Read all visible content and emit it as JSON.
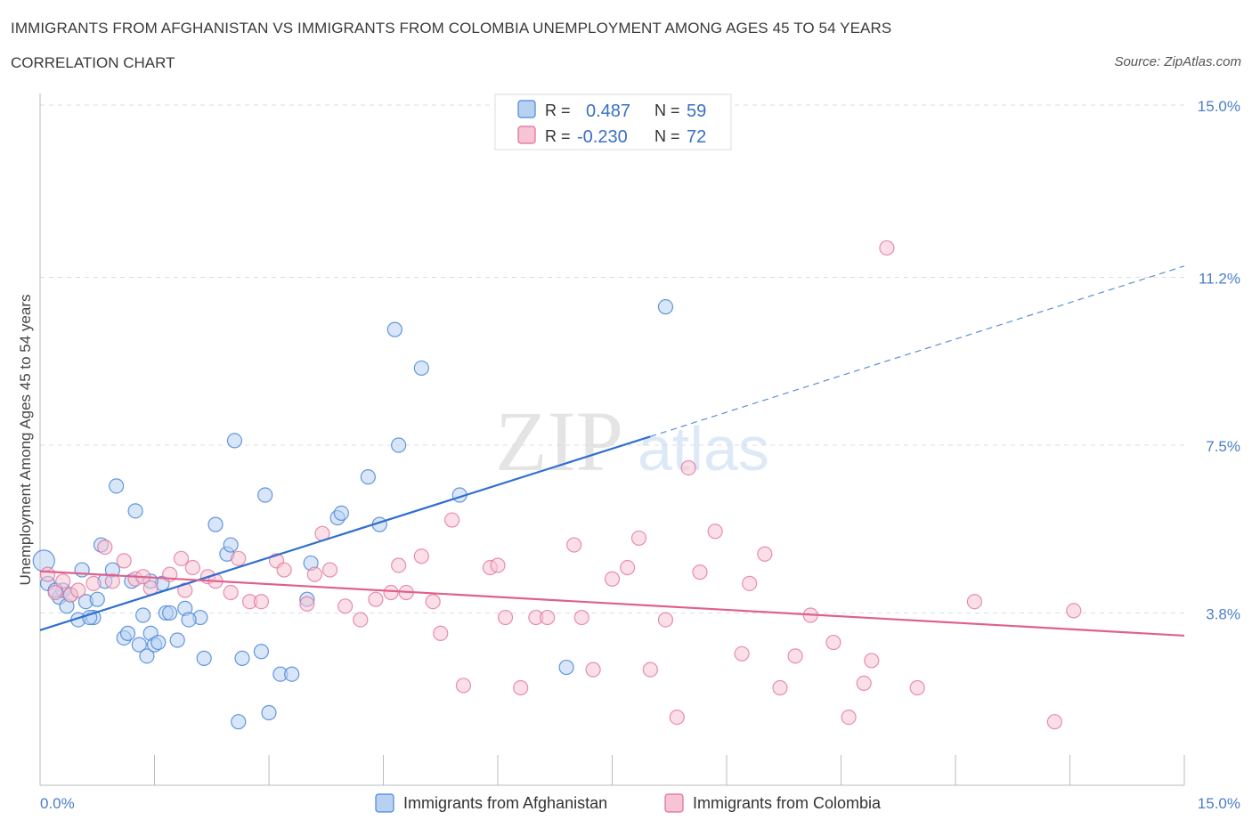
{
  "header": {
    "title": "IMMIGRANTS FROM AFGHANISTAN VS IMMIGRANTS FROM COLOMBIA UNEMPLOYMENT AMONG AGES 45 TO 54 YEARS",
    "subtitle": "CORRELATION CHART",
    "source": "Source: ZipAtlas.com"
  },
  "watermark": {
    "part1": "ZIP",
    "part2": "atlas"
  },
  "colors": {
    "afghanistan": "#4a86d8",
    "afghanistan_fill": "#b8d1f3",
    "colombia": "#e06c96",
    "colombia_fill": "#f6c4d4",
    "tick_label": "#4a7ec8",
    "grid": "#dddddd"
  },
  "legend_top": {
    "rows": [
      {
        "r_label": "R =",
        "r_value": "0.487",
        "n_label": "N =",
        "n_value": "59"
      },
      {
        "r_label": "R =",
        "r_value": "-0.230",
        "n_label": "N =",
        "n_value": "72"
      }
    ]
  },
  "chart_data": {
    "type": "scatter",
    "xlabel": "",
    "ylabel": "Unemployment Among Ages 45 to 54 years",
    "xlim": [
      0,
      15
    ],
    "ylim": [
      0,
      15
    ],
    "x_tick_labels": [
      "0.0%",
      "15.0%"
    ],
    "y_tick_labels": [
      "3.8%",
      "7.5%",
      "11.2%",
      "15.0%"
    ],
    "y_ticks": [
      3.8,
      7.5,
      11.2,
      15.0
    ],
    "grid": true,
    "legend": "top-center",
    "series": [
      {
        "name": "Immigrants from Afghanistan",
        "r": 0.487,
        "n": 59,
        "trend": {
          "x0": 0,
          "y0": 3.42,
          "x1": 8.0,
          "y1": 7.69,
          "x_ext": 15.0,
          "y_ext": 11.45
        },
        "points": [
          [
            0.05,
            4.95
          ],
          [
            0.1,
            4.45
          ],
          [
            0.25,
            4.15
          ],
          [
            0.3,
            4.3
          ],
          [
            0.35,
            3.95
          ],
          [
            0.4,
            4.2
          ],
          [
            0.5,
            3.65
          ],
          [
            0.55,
            4.75
          ],
          [
            0.6,
            4.05
          ],
          [
            0.7,
            3.7
          ],
          [
            0.75,
            4.1
          ],
          [
            0.8,
            5.3
          ],
          [
            0.85,
            4.5
          ],
          [
            0.95,
            4.75
          ],
          [
            1.0,
            6.6
          ],
          [
            1.1,
            3.25
          ],
          [
            1.15,
            3.35
          ],
          [
            1.2,
            4.5
          ],
          [
            1.25,
            6.05
          ],
          [
            1.3,
            3.1
          ],
          [
            1.35,
            3.75
          ],
          [
            1.4,
            2.85
          ],
          [
            1.45,
            3.35
          ],
          [
            1.5,
            3.1
          ],
          [
            1.55,
            3.15
          ],
          [
            1.65,
            3.8
          ],
          [
            1.9,
            3.9
          ],
          [
            2.1,
            3.7
          ],
          [
            2.15,
            2.8
          ],
          [
            2.3,
            5.75
          ],
          [
            2.45,
            5.1
          ],
          [
            2.5,
            5.3
          ],
          [
            2.55,
            7.6
          ],
          [
            2.6,
            1.4
          ],
          [
            2.65,
            2.8
          ],
          [
            2.9,
            2.95
          ],
          [
            2.95,
            6.4
          ],
          [
            3.0,
            1.6
          ],
          [
            3.15,
            2.45
          ],
          [
            3.3,
            2.45
          ],
          [
            3.5,
            4.1
          ],
          [
            3.55,
            4.9
          ],
          [
            3.9,
            5.9
          ],
          [
            3.95,
            6.0
          ],
          [
            4.3,
            6.8
          ],
          [
            4.45,
            5.75
          ],
          [
            4.65,
            10.05
          ],
          [
            4.7,
            7.5
          ],
          [
            5.0,
            9.2
          ],
          [
            5.5,
            6.4
          ],
          [
            6.9,
            2.6
          ],
          [
            8.2,
            10.55
          ],
          [
            1.6,
            4.45
          ],
          [
            1.7,
            3.8
          ],
          [
            1.95,
            3.65
          ],
          [
            1.8,
            3.2
          ],
          [
            0.2,
            4.3
          ],
          [
            0.65,
            3.7
          ],
          [
            1.45,
            4.5
          ]
        ]
      },
      {
        "name": "Immigrants from Colombia",
        "r": -0.23,
        "n": 72,
        "trend": {
          "x0": 0,
          "y0": 4.72,
          "x1": 15.0,
          "y1": 3.3
        },
        "points": [
          [
            0.1,
            4.65
          ],
          [
            0.2,
            4.25
          ],
          [
            0.3,
            4.5
          ],
          [
            0.4,
            4.2
          ],
          [
            0.5,
            4.3
          ],
          [
            0.7,
            4.45
          ],
          [
            0.85,
            5.25
          ],
          [
            0.95,
            4.5
          ],
          [
            1.1,
            4.95
          ],
          [
            1.25,
            4.55
          ],
          [
            1.35,
            4.6
          ],
          [
            1.45,
            4.35
          ],
          [
            1.7,
            4.65
          ],
          [
            1.85,
            5.0
          ],
          [
            1.9,
            4.3
          ],
          [
            2.0,
            4.8
          ],
          [
            2.2,
            4.6
          ],
          [
            2.3,
            4.5
          ],
          [
            2.5,
            4.25
          ],
          [
            2.6,
            5.0
          ],
          [
            2.75,
            4.05
          ],
          [
            2.9,
            4.05
          ],
          [
            3.1,
            4.95
          ],
          [
            3.2,
            4.75
          ],
          [
            3.5,
            4.0
          ],
          [
            3.6,
            4.65
          ],
          [
            3.7,
            5.55
          ],
          [
            3.8,
            4.75
          ],
          [
            4.0,
            3.95
          ],
          [
            4.2,
            3.65
          ],
          [
            4.4,
            4.1
          ],
          [
            4.6,
            4.25
          ],
          [
            4.7,
            4.85
          ],
          [
            4.8,
            4.25
          ],
          [
            5.0,
            5.05
          ],
          [
            5.15,
            4.05
          ],
          [
            5.25,
            3.35
          ],
          [
            5.4,
            5.85
          ],
          [
            5.55,
            2.2
          ],
          [
            5.9,
            4.8
          ],
          [
            6.0,
            4.85
          ],
          [
            6.1,
            3.7
          ],
          [
            6.3,
            2.15
          ],
          [
            6.5,
            3.7
          ],
          [
            6.65,
            3.7
          ],
          [
            7.0,
            5.3
          ],
          [
            7.1,
            3.7
          ],
          [
            7.25,
            2.55
          ],
          [
            7.5,
            4.55
          ],
          [
            7.7,
            4.8
          ],
          [
            7.85,
            5.45
          ],
          [
            8.0,
            2.55
          ],
          [
            8.2,
            3.65
          ],
          [
            8.35,
            1.5
          ],
          [
            8.5,
            7.0
          ],
          [
            8.65,
            4.7
          ],
          [
            8.85,
            5.6
          ],
          [
            9.2,
            2.9
          ],
          [
            9.3,
            4.45
          ],
          [
            9.5,
            5.1
          ],
          [
            9.7,
            2.15
          ],
          [
            9.9,
            2.85
          ],
          [
            10.1,
            3.75
          ],
          [
            10.4,
            3.15
          ],
          [
            10.6,
            1.5
          ],
          [
            10.8,
            2.25
          ],
          [
            10.9,
            2.75
          ],
          [
            11.1,
            11.85
          ],
          [
            11.5,
            2.15
          ],
          [
            12.25,
            4.05
          ],
          [
            13.3,
            1.4
          ],
          [
            13.55,
            3.85
          ]
        ]
      }
    ]
  },
  "legend_bottom": [
    {
      "label": "Immigrants from Afghanistan"
    },
    {
      "label": "Immigrants from Colombia"
    }
  ]
}
